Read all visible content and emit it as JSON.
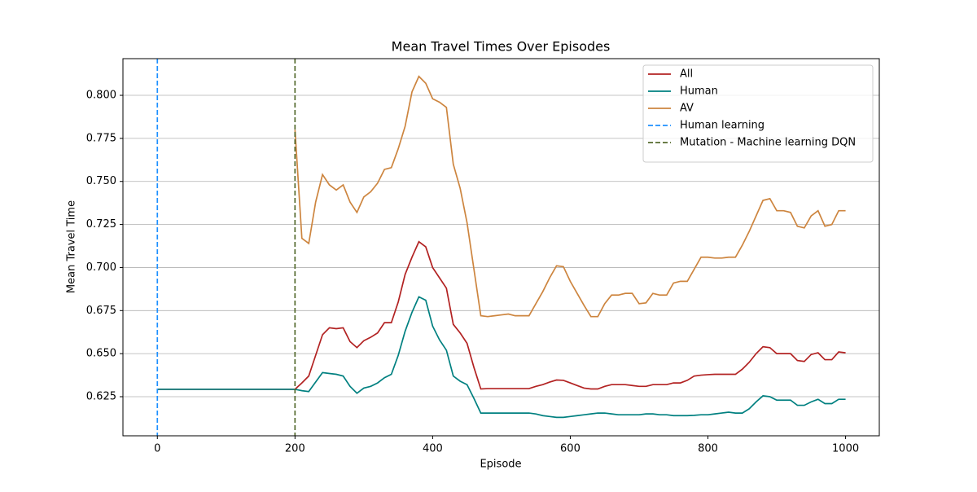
{
  "chart_data": {
    "type": "line",
    "title": "Mean Travel Times Over Episodes",
    "xlabel": "Episode",
    "ylabel": "Mean Travel Time",
    "x": [
      0,
      200,
      210,
      220,
      230,
      240,
      250,
      260,
      270,
      280,
      290,
      300,
      310,
      320,
      330,
      340,
      350,
      360,
      370,
      380,
      390,
      400,
      410,
      420,
      430,
      440,
      450,
      460,
      470,
      480,
      490,
      500,
      510,
      520,
      530,
      540,
      550,
      560,
      570,
      580,
      590,
      600,
      610,
      620,
      630,
      640,
      650,
      660,
      670,
      680,
      690,
      700,
      710,
      720,
      730,
      740,
      750,
      760,
      770,
      780,
      790,
      800,
      810,
      820,
      830,
      840,
      850,
      860,
      870,
      880,
      890,
      900,
      910,
      920,
      930,
      940,
      950,
      960,
      970,
      980,
      990,
      1000
    ],
    "series": [
      {
        "name": "All",
        "color": "#b22222",
        "values": [
          0.6293,
          0.6293,
          0.633,
          0.637,
          0.649,
          0.661,
          0.665,
          0.6645,
          0.665,
          0.657,
          0.6535,
          0.6575,
          0.6595,
          0.662,
          0.668,
          0.668,
          0.68,
          0.696,
          0.706,
          0.715,
          0.712,
          0.7,
          0.694,
          0.688,
          0.667,
          0.662,
          0.656,
          0.642,
          0.6295,
          0.6297,
          0.6297,
          0.6297,
          0.6297,
          0.6297,
          0.6297,
          0.6297,
          0.631,
          0.632,
          0.6335,
          0.6347,
          0.6345,
          0.633,
          0.6315,
          0.63,
          0.6295,
          0.6295,
          0.631,
          0.632,
          0.632,
          0.632,
          0.6315,
          0.631,
          0.631,
          0.632,
          0.632,
          0.632,
          0.633,
          0.633,
          0.6345,
          0.637,
          0.6375,
          0.6378,
          0.638,
          0.638,
          0.638,
          0.638,
          0.641,
          0.645,
          0.65,
          0.654,
          0.6535,
          0.65,
          0.65,
          0.65,
          0.646,
          0.6455,
          0.6495,
          0.6505,
          0.6465,
          0.6465,
          0.651,
          0.6505
        ]
      },
      {
        "name": "Human",
        "color": "#008080",
        "values": [
          0.6293,
          0.6293,
          0.6285,
          0.628,
          0.6335,
          0.639,
          0.6385,
          0.638,
          0.637,
          0.631,
          0.627,
          0.63,
          0.631,
          0.633,
          0.636,
          0.638,
          0.649,
          0.663,
          0.674,
          0.683,
          0.681,
          0.666,
          0.658,
          0.652,
          0.637,
          0.634,
          0.632,
          0.624,
          0.6155,
          0.6155,
          0.6155,
          0.6155,
          0.6155,
          0.6155,
          0.6155,
          0.6155,
          0.615,
          0.614,
          0.6135,
          0.613,
          0.613,
          0.6135,
          0.614,
          0.6145,
          0.615,
          0.6155,
          0.6155,
          0.615,
          0.6145,
          0.6145,
          0.6145,
          0.6145,
          0.615,
          0.615,
          0.6145,
          0.6145,
          0.614,
          0.614,
          0.614,
          0.6142,
          0.6145,
          0.6145,
          0.615,
          0.6155,
          0.616,
          0.6155,
          0.6155,
          0.618,
          0.622,
          0.6255,
          0.625,
          0.623,
          0.623,
          0.623,
          0.62,
          0.62,
          0.622,
          0.6235,
          0.621,
          0.621,
          0.6235,
          0.6235
        ]
      },
      {
        "name": "AV",
        "color": "#cd853f",
        "values": [
          null,
          0.78,
          0.717,
          0.714,
          0.738,
          0.754,
          0.748,
          0.745,
          0.748,
          0.738,
          0.732,
          0.741,
          0.744,
          0.749,
          0.757,
          0.758,
          0.769,
          0.782,
          0.802,
          0.811,
          0.807,
          0.798,
          0.796,
          0.793,
          0.76,
          0.746,
          0.726,
          0.699,
          0.672,
          0.6715,
          0.672,
          0.6725,
          0.673,
          0.672,
          0.672,
          0.672,
          0.679,
          0.686,
          0.694,
          0.701,
          0.7005,
          0.692,
          0.685,
          0.678,
          0.6715,
          0.6715,
          0.679,
          0.684,
          0.684,
          0.685,
          0.685,
          0.679,
          0.6795,
          0.685,
          0.684,
          0.684,
          0.691,
          0.692,
          0.692,
          0.699,
          0.706,
          0.706,
          0.7055,
          0.7055,
          0.706,
          0.706,
          0.713,
          0.721,
          0.73,
          0.739,
          0.74,
          0.733,
          0.733,
          0.732,
          0.724,
          0.723,
          0.73,
          0.733,
          0.724,
          0.725,
          0.733,
          0.733
        ]
      }
    ],
    "vlines": [
      {
        "name": "Human learning",
        "x": 0,
        "color": "#1e90ff"
      },
      {
        "name": "Mutation - Machine learning DQN",
        "x": 200,
        "color": "#556b2f"
      }
    ],
    "xlim": [
      -50,
      1049
    ],
    "ylim": [
      0.6023,
      0.8213
    ],
    "xticks": [
      0,
      200,
      400,
      600,
      800,
      1000
    ],
    "yticks": [
      0.625,
      {
        "value": 0.65,
        "label": "0.650"
      },
      0.675,
      {
        "value": 0.7,
        "label": "0.700"
      },
      0.725,
      {
        "value": 0.75,
        "label": "0.750"
      },
      0.775,
      {
        "value": 0.8,
        "label": "0.800"
      }
    ],
    "grid": "y",
    "legend": "upper right"
  }
}
